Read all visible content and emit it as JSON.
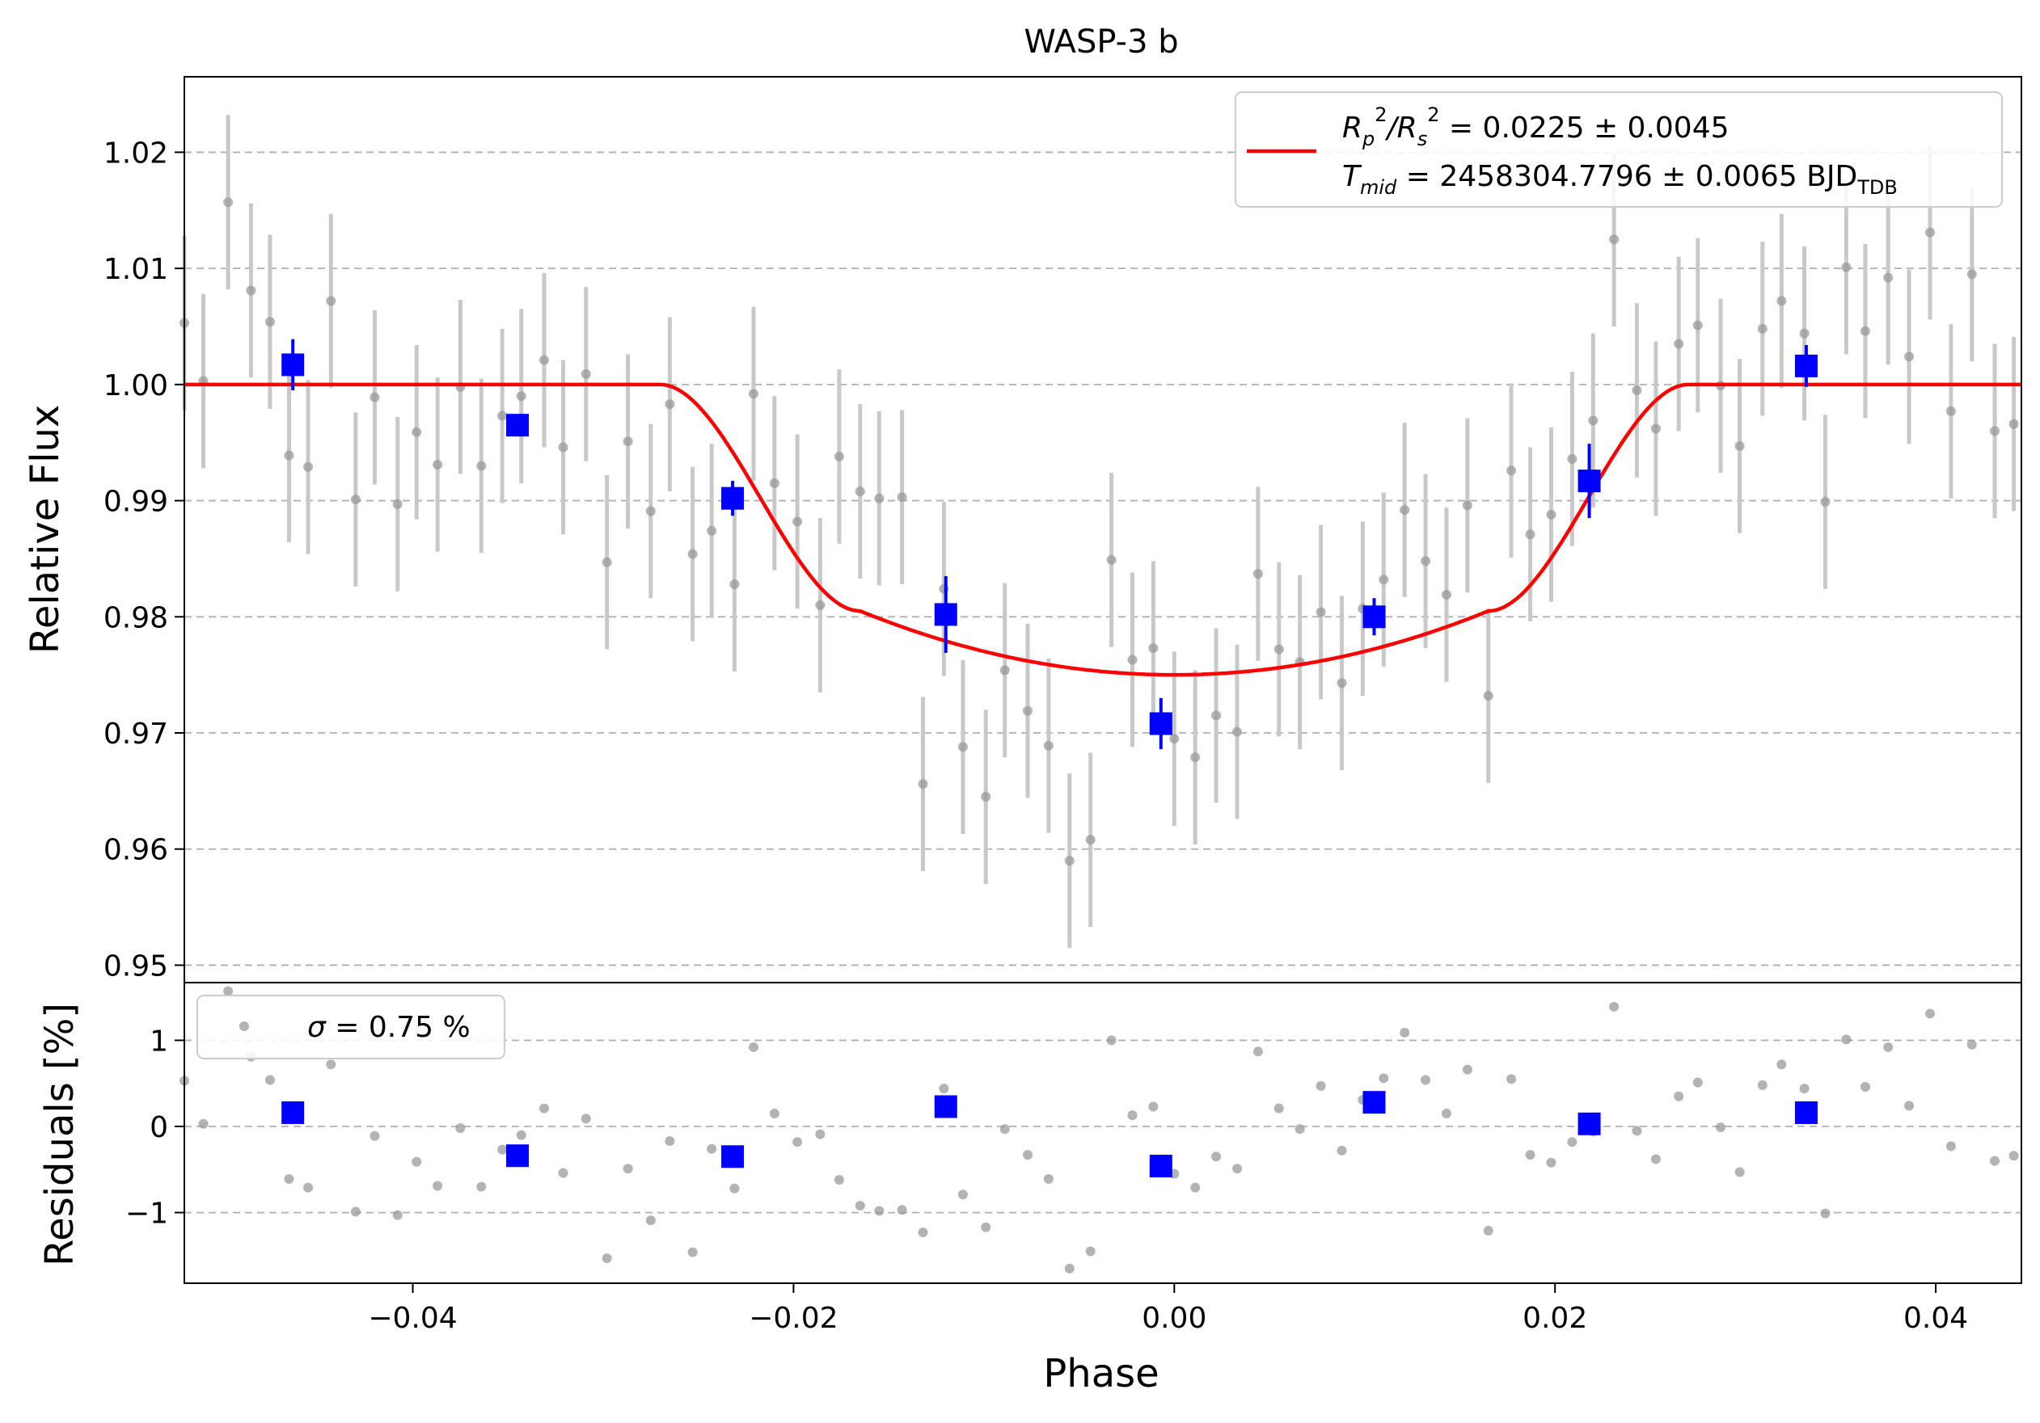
{
  "chart_data": [
    {
      "type": "scatter",
      "title": "WASP-3 b",
      "xlabel": "",
      "ylabel": "Relative Flux",
      "xlim": [
        -0.052,
        0.0445
      ],
      "ylim": [
        0.9485,
        1.0265
      ],
      "x_ticks": [
        {
          "value": -0.04,
          "label": "−0.04"
        },
        {
          "value": -0.02,
          "label": "−0.02"
        },
        {
          "value": 0.0,
          "label": "0.00"
        },
        {
          "value": 0.02,
          "label": "0.02"
        },
        {
          "value": 0.04,
          "label": "0.04"
        }
      ],
      "y_ticks": [
        {
          "value": 0.95,
          "label": "0.95"
        },
        {
          "value": 0.96,
          "label": "0.96"
        },
        {
          "value": 0.97,
          "label": "0.97"
        },
        {
          "value": 0.98,
          "label": "0.98"
        },
        {
          "value": 0.99,
          "label": "0.99"
        },
        {
          "value": 1.0,
          "label": "1.00"
        },
        {
          "value": 1.01,
          "label": "1.01"
        },
        {
          "value": 1.02,
          "label": "1.02"
        }
      ],
      "grid": "horizontal dashed",
      "legend_position": "upper right",
      "legend": {
        "line1_prefix": "R",
        "line1_sub_p": "p",
        "line1_sup_1": "2",
        "line1_sep": "/R",
        "line1_sub_s": "s",
        "line1_sup_2": "2",
        "line1_value": " = 0.0225 ± 0.0045",
        "line2_prefix": "T",
        "line2_sub": "mid",
        "line2_value": " = 2458304.7796 ± 0.0065 BJD",
        "line2_unit_sub": "TDB"
      },
      "colors": {
        "raw": "#9a9a9a",
        "binned": "#0000ff",
        "model": "#ff0000"
      },
      "model": {
        "baseline": 1.0,
        "depth_center": 0.975,
        "t1": -0.027,
        "t2": -0.0165,
        "t3": 0.0165,
        "t4": 0.027
      },
      "raw": {
        "x": [
          -0.052,
          -0.051,
          -0.0497,
          -0.0485,
          -0.0475,
          -0.0465,
          -0.0455,
          -0.0443,
          -0.043,
          -0.042,
          -0.0408,
          -0.0398,
          -0.0387,
          -0.0375,
          -0.0364,
          -0.0353,
          -0.0343,
          -0.0331,
          -0.0321,
          -0.0309,
          -0.0298,
          -0.0287,
          -0.0275,
          -0.0265,
          -0.0253,
          -0.0243,
          -0.0231,
          -0.0221,
          -0.021,
          -0.0198,
          -0.0186,
          -0.0176,
          -0.0165,
          -0.0155,
          -0.0143,
          -0.0132,
          -0.0121,
          -0.0111,
          -0.0099,
          -0.0089,
          -0.0077,
          -0.0066,
          -0.0055,
          -0.0044,
          -0.0033,
          -0.0022,
          -0.0011,
          0.0,
          0.0011,
          0.0022,
          0.0033,
          0.0044,
          0.0055,
          0.0066,
          0.0077,
          0.0088,
          0.0099,
          0.011,
          0.0121,
          0.0132,
          0.0143,
          0.0154,
          0.0165,
          0.0177,
          0.0187,
          0.0198,
          0.0209,
          0.022,
          0.0231,
          0.0243,
          0.0253,
          0.0265,
          0.0275,
          0.0287,
          0.0297,
          0.0309,
          0.0319,
          0.0331,
          0.0342,
          0.0353,
          0.0363,
          0.0375,
          0.0386,
          0.0397,
          0.0408,
          0.0419,
          0.0431,
          0.0441
        ],
        "y": [
          1.0053,
          1.0003,
          1.0157,
          1.0081,
          1.0054,
          0.9939,
          0.9929,
          1.0072,
          0.9901,
          0.9989,
          0.9897,
          0.9959,
          0.9931,
          0.9998,
          0.993,
          0.9973,
          0.999,
          1.0021,
          0.9946,
          1.0009,
          0.9847,
          0.9951,
          0.9891,
          0.9983,
          0.9854,
          0.9874,
          0.9828,
          0.9992,
          0.9915,
          0.9882,
          0.981,
          0.9938,
          0.9908,
          0.9902,
          0.9903,
          0.9656,
          0.9824,
          0.9688,
          0.9645,
          0.9754,
          0.9719,
          0.9689,
          0.959,
          0.9608,
          0.9849,
          0.9763,
          0.9773,
          0.9695,
          0.9679,
          0.9715,
          0.9701,
          0.9837,
          0.9772,
          0.9761,
          0.9804,
          0.9743,
          0.9807,
          0.9832,
          0.9892,
          0.9848,
          0.9819,
          0.9896,
          0.9732,
          0.9926,
          0.9871,
          0.9888,
          0.9936,
          0.9969,
          1.0125,
          0.9995,
          0.9962,
          1.0035,
          1.0051,
          0.9999,
          0.9947,
          1.0048,
          1.0072,
          1.0044,
          0.9899,
          1.0101,
          1.0046,
          1.0092,
          1.0024,
          1.0131,
          0.9977,
          1.0095,
          0.996,
          0.9966
        ],
        "err": [
          0.0075
        ]
      },
      "binned": {
        "x": [
          -0.0463,
          -0.0345,
          -0.0232,
          -0.012,
          -0.0007,
          0.0105,
          0.0218,
          0.0332
        ],
        "y": [
          1.0017,
          0.9965,
          0.9902,
          0.9802,
          0.9708,
          0.98,
          0.9917,
          1.0016
        ],
        "err": [
          0.0022,
          0.0009,
          0.0015,
          0.0033,
          0.0022,
          0.0016,
          0.0032,
          0.0018
        ]
      }
    },
    {
      "type": "scatter",
      "title": "",
      "xlabel": "Phase",
      "ylabel": "Residuals [%]",
      "xlim": [
        -0.052,
        0.0445
      ],
      "ylim": [
        -1.82,
        1.67
      ],
      "y_ticks": [
        {
          "value": -1,
          "label": "−1"
        },
        {
          "value": 0,
          "label": "0"
        },
        {
          "value": 1,
          "label": "1"
        }
      ],
      "grid": "horizontal dashed",
      "legend_position": "upper left",
      "legend": {
        "sigma_symbol": "σ",
        "sigma_value": " = 0.75 %"
      },
      "raw": {
        "y": [
          0.53,
          0.03,
          1.57,
          0.81,
          0.54,
          -0.61,
          -0.71,
          0.72,
          -0.99,
          -0.11,
          -1.03,
          -0.41,
          -0.69,
          -0.02,
          -0.7,
          -0.27,
          -0.1,
          0.21,
          -0.54,
          0.09,
          -1.53,
          -0.49,
          -1.09,
          -0.17,
          -1.46,
          -0.26,
          -0.72,
          0.92,
          0.15,
          -0.18,
          -0.09,
          -0.62,
          -0.92,
          -0.98,
          -0.97,
          -1.23,
          0.44,
          -0.79,
          -1.17,
          -0.03,
          -0.33,
          -0.61,
          -1.65,
          -1.45,
          1.0,
          0.13,
          0.23,
          -0.55,
          -0.71,
          -0.35,
          -0.49,
          0.87,
          0.21,
          -0.03,
          0.47,
          -0.28,
          0.31,
          0.56,
          1.09,
          0.54,
          0.15,
          0.66,
          -1.21,
          0.55,
          -0.33,
          -0.42,
          -0.18,
          -0.06,
          1.39,
          -0.05,
          -0.38,
          0.35,
          0.51,
          -0.01,
          -0.53,
          0.48,
          0.72,
          0.44,
          -1.01,
          1.01,
          0.46,
          0.92,
          0.24,
          1.31,
          -0.23,
          0.95,
          -0.4,
          -0.34
        ]
      },
      "binned": {
        "y": [
          0.16,
          -0.34,
          -0.35,
          0.23,
          -0.46,
          0.28,
          0.03,
          0.16
        ]
      }
    }
  ]
}
